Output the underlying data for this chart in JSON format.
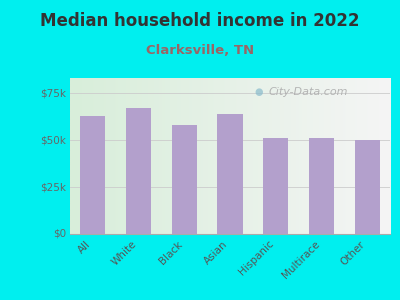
{
  "title": "Median household income in 2022",
  "subtitle": "Clarksville, TN",
  "categories": [
    "All",
    "White",
    "Black",
    "Asian",
    "Hispanic",
    "Multirace",
    "Other"
  ],
  "values": [
    63000,
    67000,
    58000,
    64000,
    51000,
    51000,
    50000
  ],
  "bar_color": "#b3a0cc",
  "background_color": "#00efef",
  "plot_bg_left": "#d8eeda",
  "plot_bg_right": "#f5f5f5",
  "title_color": "#333333",
  "subtitle_color": "#996666",
  "ytick_label_color": "#666666",
  "xtick_label_color": "#555555",
  "ytick_labels": [
    "$0",
    "$25k",
    "$50k",
    "$75k"
  ],
  "ytick_values": [
    0,
    25000,
    50000,
    75000
  ],
  "ylim": [
    0,
    83000
  ],
  "watermark_text": "City-Data.com",
  "title_fontsize": 12,
  "subtitle_fontsize": 9.5,
  "tick_fontsize": 7.5,
  "watermark_fontsize": 8
}
